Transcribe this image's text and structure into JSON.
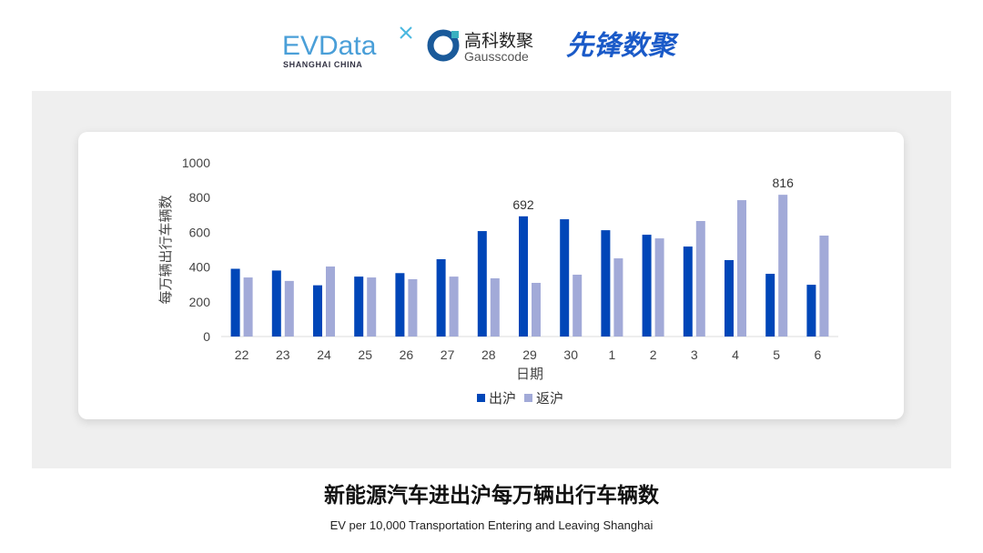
{
  "logos": {
    "evdata": "EVData",
    "evdata_sub": "SHANGHAI CHINA",
    "gauss_cn": "高科数聚",
    "gauss_en": "Gausscode",
    "xianfeng": "先锋数聚"
  },
  "caption": {
    "title": "新能源汽车进出沪每万辆出行车辆数",
    "subtitle": "EV per 10,000 Transportation Entering and Leaving Shanghai"
  },
  "chart_data": {
    "type": "bar",
    "xlabel": "日期",
    "ylabel": "每万辆出行车辆数",
    "ylim": [
      0,
      1000
    ],
    "yticks": [
      0,
      200,
      400,
      600,
      800,
      1000
    ],
    "grid": false,
    "legend": "bottom",
    "categories": [
      "22",
      "23",
      "24",
      "25",
      "26",
      "27",
      "28",
      "29",
      "30",
      "1",
      "2",
      "3",
      "4",
      "5",
      "6"
    ],
    "series": [
      {
        "name": "出沪",
        "color": "#0046b8",
        "values": [
          390,
          380,
          295,
          345,
          365,
          445,
          607,
          692,
          675,
          612,
          586,
          518,
          440,
          361,
          298
        ]
      },
      {
        "name": "返沪",
        "color": "#a2aad8",
        "values": [
          340,
          320,
          403,
          340,
          330,
          345,
          335,
          309,
          356,
          450,
          565,
          665,
          785,
          816,
          581
        ]
      }
    ],
    "data_labels": [
      {
        "series": 0,
        "index": 7,
        "text": "692"
      },
      {
        "series": 1,
        "index": 13,
        "text": "816"
      }
    ]
  }
}
